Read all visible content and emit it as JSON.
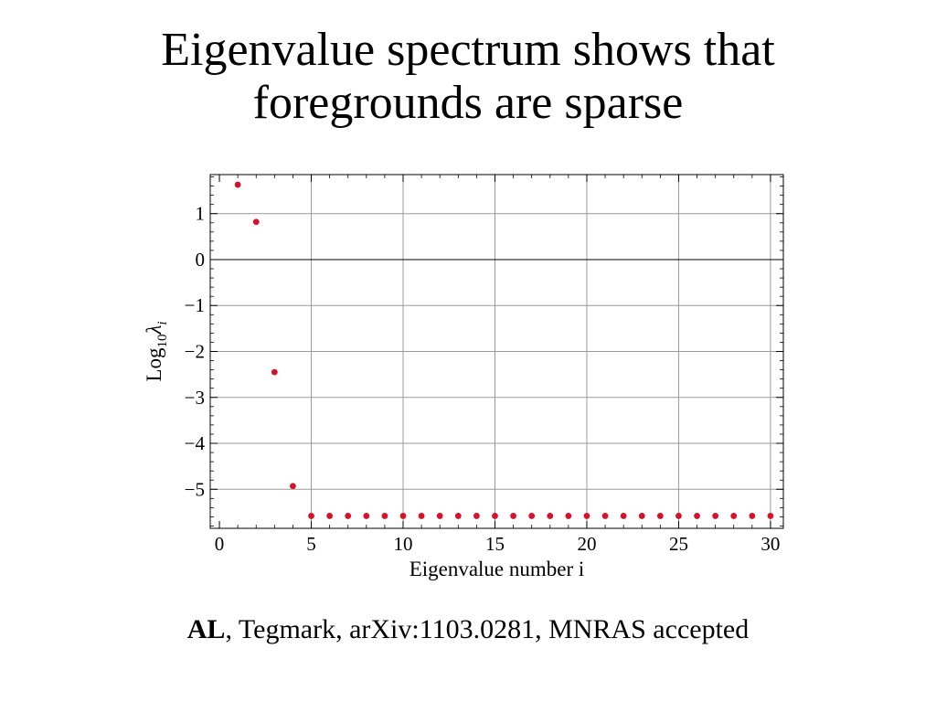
{
  "slide": {
    "title_line1": "Eigenvalue spectrum shows that",
    "title_line2": "foregrounds are sparse",
    "citation_bold": "AL",
    "citation_rest": ", Tegmark, arXiv:1103.0281, MNRAS accepted"
  },
  "chart_data": {
    "type": "scatter",
    "xlabel": "Eigenvalue number i",
    "ylabel_main": "Log",
    "ylabel_sub": "10",
    "ylabel_symbol": "λ",
    "ylabel_symbol_sub": "i",
    "xlim": [
      -0.5,
      30.7
    ],
    "ylim": [
      -5.85,
      1.85
    ],
    "x_ticks": [
      0,
      5,
      10,
      15,
      20,
      25,
      30
    ],
    "x_tick_labels": [
      "0",
      "5",
      "10",
      "15",
      "20",
      "25",
      "30"
    ],
    "y_ticks": [
      1,
      0,
      -1,
      -2,
      -3,
      -4,
      -5
    ],
    "y_tick_labels": [
      "1",
      "0",
      "−1",
      "−2",
      "−3",
      "−4",
      "−5"
    ],
    "grid": true,
    "marker_color": "#d8102a",
    "series": [
      {
        "x": [
          1,
          2,
          3,
          4,
          5,
          6,
          7,
          8,
          9,
          10,
          11,
          12,
          13,
          14,
          15,
          16,
          17,
          18,
          19,
          20,
          21,
          22,
          23,
          24,
          25,
          26,
          27,
          28,
          29,
          30
        ],
        "y": [
          1.63,
          0.82,
          -2.45,
          -4.93,
          -5.58,
          -5.58,
          -5.58,
          -5.58,
          -5.58,
          -5.58,
          -5.58,
          -5.58,
          -5.58,
          -5.58,
          -5.58,
          -5.58,
          -5.58,
          -5.58,
          -5.58,
          -5.58,
          -5.58,
          -5.58,
          -5.58,
          -5.58,
          -5.58,
          -5.58,
          -5.58,
          -5.58,
          -5.58,
          -5.58
        ]
      }
    ]
  }
}
